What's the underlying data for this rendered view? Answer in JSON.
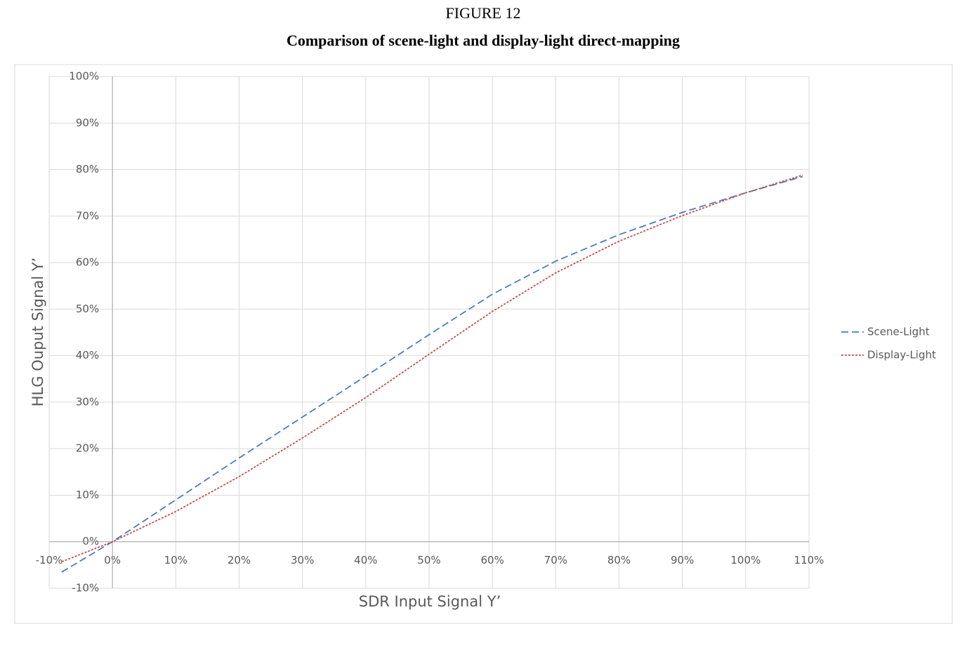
{
  "chart_data": {
    "type": "line",
    "figure_label": "FIGURE 12",
    "title": "Comparison of scene-light and display-light direct-mapping",
    "x_label": "SDR Input Signal Y’",
    "y_label": "HLG Ouput Signal Y’",
    "x": [
      -8,
      0,
      10,
      20,
      30,
      40,
      50,
      60,
      70,
      80,
      90,
      100,
      109
    ],
    "series": [
      {
        "name": "Scene-Light",
        "color": "#4a7ebb",
        "dash": "10,5",
        "values": [
          -6.5,
          0,
          9,
          18,
          26.8,
          35.6,
          44.5,
          53.2,
          60.3,
          66,
          70.8,
          75,
          78.5
        ]
      },
      {
        "name": "Display-Light",
        "color": "#c0504d",
        "dash": "3,2",
        "values": [
          -4.3,
          0,
          6.5,
          14,
          22.3,
          31,
          40.3,
          49.5,
          57.8,
          64.6,
          70.1,
          75,
          78.8
        ]
      }
    ],
    "xlim": [
      -10,
      110
    ],
    "ylim": [
      -10,
      100
    ],
    "xticks": [
      {
        "value": -10,
        "label": "-10%"
      },
      {
        "value": 0,
        "label": "0%"
      },
      {
        "value": 10,
        "label": "10%"
      },
      {
        "value": 20,
        "label": "20%"
      },
      {
        "value": 30,
        "label": "30%"
      },
      {
        "value": 40,
        "label": "40%"
      },
      {
        "value": 50,
        "label": "50%"
      },
      {
        "value": 60,
        "label": "60%"
      },
      {
        "value": 70,
        "label": "70%"
      },
      {
        "value": 80,
        "label": "80%"
      },
      {
        "value": 90,
        "label": "90%"
      },
      {
        "value": 100,
        "label": "100%"
      },
      {
        "value": 110,
        "label": "110%"
      }
    ],
    "yticks": [
      {
        "value": -10,
        "label": "-10%"
      },
      {
        "value": 0,
        "label": "0%"
      },
      {
        "value": 10,
        "label": "10%"
      },
      {
        "value": 20,
        "label": "20%"
      },
      {
        "value": 30,
        "label": "30%"
      },
      {
        "value": 40,
        "label": "40%"
      },
      {
        "value": 50,
        "label": "50%"
      },
      {
        "value": 60,
        "label": "60%"
      },
      {
        "value": 70,
        "label": "70%"
      },
      {
        "value": 80,
        "label": "80%"
      },
      {
        "value": 90,
        "label": "90%"
      },
      {
        "value": 100,
        "label": "100%"
      }
    ],
    "grid": true,
    "legend": "right"
  }
}
